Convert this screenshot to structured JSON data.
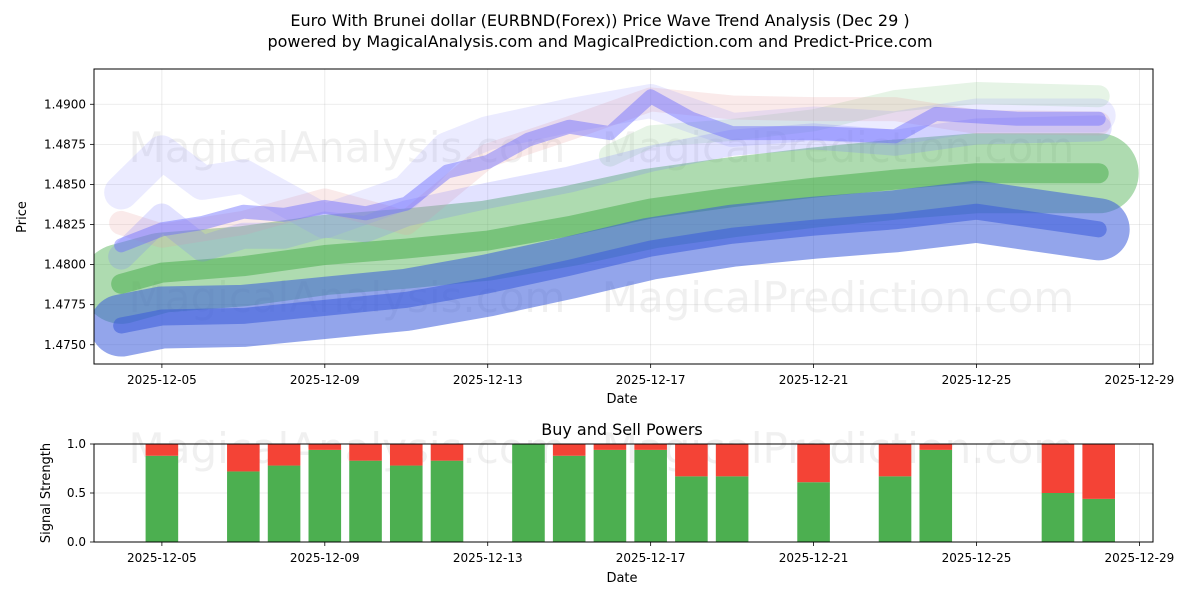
{
  "chart_data": [
    {
      "type": "line",
      "title": "Euro With Brunei dollar (EURBND(Forex)) Price Wave Trend Analysis (Dec 29 )",
      "subtitle": "powered by MagicalAnalysis.com and MagicalPrediction.com and Predict-Price.com",
      "xlabel": "Date",
      "ylabel": "Price",
      "xlim": [
        "2025-12-03T08:00",
        "2025-12-29T08:00"
      ],
      "ylim": [
        1.4738,
        1.4922
      ],
      "x_ticks": [
        "2025-12-05",
        "2025-12-09",
        "2025-12-13",
        "2025-12-17",
        "2025-12-21",
        "2025-12-25",
        "2025-12-29"
      ],
      "y_ticks": [
        1.475,
        1.4775,
        1.48,
        1.4825,
        1.485,
        1.4875,
        1.49
      ],
      "grid": true,
      "series": [
        {
          "name": "green-trend-band",
          "color": "#4caf50",
          "x": [
            "2025-12-04",
            "2025-12-05",
            "2025-12-07",
            "2025-12-09",
            "2025-12-11",
            "2025-12-13",
            "2025-12-15",
            "2025-12-17",
            "2025-12-19",
            "2025-12-21",
            "2025-12-23",
            "2025-12-25",
            "2025-12-28"
          ],
          "values": [
            1.4788,
            1.4795,
            1.4799,
            1.4806,
            1.481,
            1.4815,
            1.4824,
            1.4835,
            1.4842,
            1.4848,
            1.4853,
            1.4857,
            1.4857
          ]
        },
        {
          "name": "blue-trend-band",
          "color": "#3b5bdb",
          "x": [
            "2025-12-04",
            "2025-12-05",
            "2025-12-07",
            "2025-12-09",
            "2025-12-11",
            "2025-12-13",
            "2025-12-15",
            "2025-12-17",
            "2025-12-19",
            "2025-12-21",
            "2025-12-23",
            "2025-12-25",
            "2025-12-28"
          ],
          "values": [
            1.4762,
            1.4767,
            1.4768,
            1.4773,
            1.4778,
            1.4787,
            1.4798,
            1.481,
            1.4818,
            1.4823,
            1.4827,
            1.4833,
            1.4822
          ]
        },
        {
          "name": "upper-wave-1",
          "color": "#6a6aff",
          "x": [
            "2025-12-04",
            "2025-12-05",
            "2025-12-06",
            "2025-12-07",
            "2025-12-08",
            "2025-12-09",
            "2025-12-10",
            "2025-12-11",
            "2025-12-12",
            "2025-12-13",
            "2025-12-14",
            "2025-12-15",
            "2025-12-16",
            "2025-12-17",
            "2025-12-18",
            "2025-12-19",
            "2025-12-21",
            "2025-12-23",
            "2025-12-24",
            "2025-12-26",
            "2025-12-28"
          ],
          "values": [
            1.4812,
            1.4822,
            1.4826,
            1.4833,
            1.4831,
            1.4836,
            1.4832,
            1.4838,
            1.4858,
            1.4864,
            1.4878,
            1.4886,
            1.4882,
            1.4905,
            1.4891,
            1.4882,
            1.4882,
            1.488,
            1.4894,
            1.4891,
            1.4891
          ]
        },
        {
          "name": "upper-wave-2",
          "color": "#8f8fff",
          "x": [
            "2025-12-04",
            "2025-12-05",
            "2025-12-06",
            "2025-12-07",
            "2025-12-09",
            "2025-12-11",
            "2025-12-12",
            "2025-12-13",
            "2025-12-15",
            "2025-12-17",
            "2025-12-19",
            "2025-12-21",
            "2025-12-23",
            "2025-12-25",
            "2025-12-28"
          ],
          "values": [
            1.4845,
            1.487,
            1.4851,
            1.4855,
            1.4827,
            1.4845,
            1.4872,
            1.4882,
            1.4893,
            1.4902,
            1.4884,
            1.4888,
            1.4885,
            1.4893,
            1.4893
          ]
        },
        {
          "name": "upper-wave-3",
          "color": "#e8a0a0",
          "x": [
            "2025-12-04",
            "2025-12-05",
            "2025-12-07",
            "2025-12-09",
            "2025-12-11",
            "2025-12-13",
            "2025-12-15",
            "2025-12-17",
            "2025-12-19",
            "2025-12-21",
            "2025-12-23",
            "2025-12-25",
            "2025-12-28"
          ],
          "values": [
            1.4826,
            1.4818,
            1.4826,
            1.484,
            1.4826,
            1.4868,
            1.4885,
            1.4903,
            1.4898,
            1.4897,
            1.4897,
            1.4889,
            1.4888
          ]
        },
        {
          "name": "upper-wave-4",
          "color": "#7b7bff",
          "x": [
            "2025-12-04",
            "2025-12-05",
            "2025-12-06",
            "2025-12-07",
            "2025-12-08",
            "2025-12-09",
            "2025-12-10",
            "2025-12-11",
            "2025-12-13",
            "2025-12-15",
            "2025-12-17",
            "2025-12-19",
            "2025-12-21",
            "2025-12-23",
            "2025-12-25",
            "2025-12-28"
          ],
          "values": [
            1.4805,
            1.483,
            1.481,
            1.4818,
            1.4818,
            1.4825,
            1.4822,
            1.4832,
            1.4843,
            1.4853,
            1.4866,
            1.4876,
            1.488,
            1.4876,
            1.4883,
            1.4885
          ]
        },
        {
          "name": "upper-wave-5",
          "color": "#9bd29b",
          "x": [
            "2025-12-16",
            "2025-12-17",
            "2025-12-19",
            "2025-12-21",
            "2025-12-23",
            "2025-12-25",
            "2025-12-28"
          ],
          "values": [
            1.4868,
            1.488,
            1.4884,
            1.489,
            1.4902,
            1.4907,
            1.4905
          ]
        }
      ],
      "watermarks": [
        "MagicalAnalysis.com",
        "MagicalPrediction.com"
      ]
    },
    {
      "type": "bar",
      "title": "Buy and Sell Powers",
      "xlabel": "Date",
      "ylabel": "Signal Strength",
      "ylim": [
        0,
        1.0
      ],
      "y_ticks": [
        "0.0",
        "0.5",
        "1.0"
      ],
      "x_ticks": [
        "2025-12-05",
        "2025-12-09",
        "2025-12-13",
        "2025-12-17",
        "2025-12-21",
        "2025-12-25",
        "2025-12-29"
      ],
      "categories": [
        "2025-12-05",
        "2025-12-07",
        "2025-12-08",
        "2025-12-09",
        "2025-12-10",
        "2025-12-11",
        "2025-12-12",
        "2025-12-14",
        "2025-12-15",
        "2025-12-16",
        "2025-12-17",
        "2025-12-18",
        "2025-12-19",
        "2025-12-21",
        "2025-12-23",
        "2025-12-24",
        "2025-12-27",
        "2025-12-28"
      ],
      "series": [
        {
          "name": "Buy",
          "color": "#4caf50",
          "values": [
            0.88,
            0.72,
            0.78,
            0.94,
            0.83,
            0.78,
            0.83,
            1.0,
            0.88,
            0.94,
            0.94,
            0.67,
            0.67,
            0.61,
            0.67,
            0.94,
            0.5,
            0.44
          ]
        },
        {
          "name": "Sell",
          "color": "#f44336",
          "values": [
            0.12,
            0.28,
            0.22,
            0.06,
            0.17,
            0.22,
            0.17,
            0.0,
            0.12,
            0.06,
            0.06,
            0.33,
            0.33,
            0.39,
            0.33,
            0.06,
            0.5,
            0.56
          ]
        }
      ],
      "watermarks": [
        "MagicalAnalysis.com",
        "MagicalPrediction.com"
      ]
    }
  ]
}
